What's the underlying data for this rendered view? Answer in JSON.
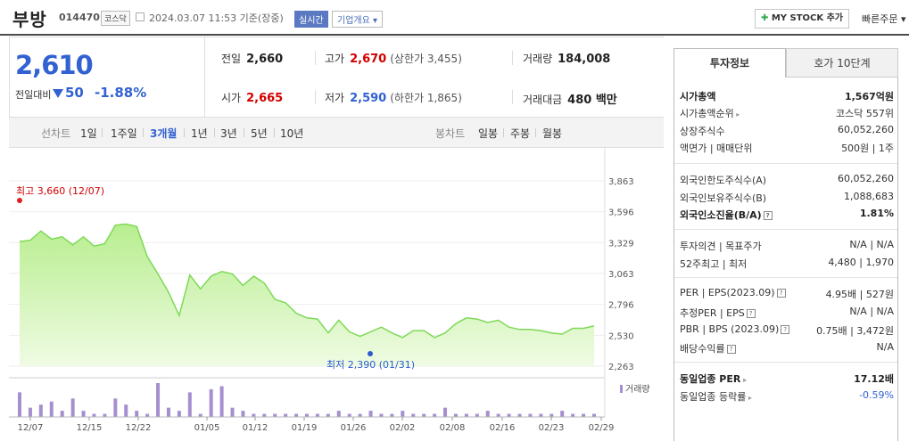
{
  "header": {
    "stock_name": "부방",
    "stock_code": "014470",
    "market": "코스닥",
    "timestamp": "2024.03.07 11:53 기준(장중)",
    "realtime_label": "실시간",
    "corp_info_label": "기업개요",
    "mystock_label": "MY STOCK 추가",
    "quick_order_label": "빠른주문"
  },
  "price": {
    "current": "2,610",
    "prev_label": "전일대비",
    "change": "50",
    "change_pct": "-1.88%"
  },
  "stats": {
    "prev_close_label": "전일",
    "prev_close": "2,660",
    "high_label": "고가",
    "high": "2,670",
    "upper_limit": "(상한가 3,455)",
    "volume_label": "거래량",
    "volume": "184,008",
    "open_label": "시가",
    "open": "2,665",
    "low_label": "저가",
    "low": "2,590",
    "lower_limit": "(하한가 1,865)",
    "amount_label": "거래대금",
    "amount": "480 백만"
  },
  "tabs": {
    "line_chart_label": "선차트",
    "periods": [
      "1일",
      "1주일",
      "3개월",
      "1년",
      "3년",
      "5년",
      "10년"
    ],
    "active_period": "3개월",
    "candle_label": "봉차트",
    "candles": [
      "일봉",
      "주봉",
      "월봉"
    ]
  },
  "chart_data": {
    "type": "area",
    "y_ticks": [
      "3,863",
      "3,596",
      "3,329",
      "3,063",
      "2,796",
      "2,530",
      "2,263"
    ],
    "ylim": [
      2263,
      3863
    ],
    "x_ticks": [
      "12/07",
      "12/15",
      "12/22",
      "01/05",
      "01/12",
      "01/19",
      "01/26",
      "02/02",
      "02/08",
      "02/16",
      "02/23",
      "02/29"
    ],
    "max_label": "최고 3,660 (12/07)",
    "min_label": "최저 2,390 (01/31)",
    "volume_legend": "거래량",
    "prices": [
      3340,
      3350,
      3430,
      3360,
      3380,
      3310,
      3380,
      3300,
      3320,
      3480,
      3490,
      3470,
      3210,
      3060,
      2900,
      2700,
      3050,
      2930,
      3040,
      3080,
      3060,
      2960,
      3040,
      2980,
      2840,
      2810,
      2720,
      2680,
      2670,
      2550,
      2660,
      2560,
      2520,
      2560,
      2600,
      2550,
      2510,
      2570,
      2570,
      2510,
      2550,
      2630,
      2680,
      2670,
      2640,
      2660,
      2600,
      2580,
      2580,
      2570,
      2550,
      2540,
      2590,
      2590,
      2610
    ],
    "volumes": [
      8,
      3,
      4,
      5,
      2,
      6,
      2,
      1,
      1,
      6,
      4,
      2,
      1,
      11,
      3,
      2,
      8,
      1,
      9,
      10,
      3,
      2,
      1,
      1,
      1,
      1,
      1,
      1,
      1,
      1,
      2,
      1,
      1,
      2,
      1,
      1,
      2,
      1,
      1,
      1,
      3,
      1,
      1,
      1,
      2,
      1,
      1,
      1,
      1,
      1,
      1,
      2,
      1,
      1,
      1
    ]
  },
  "right_panel": {
    "tab_invest": "투자정보",
    "tab_hoga": "호가 10단계",
    "rows": [
      {
        "k": "시가총액",
        "v": "1,567억원",
        "bold": true
      },
      {
        "k": "시가총액순위",
        "v": "코스닥 557위",
        "arrow": true
      },
      {
        "k": "상장주식수",
        "v": "60,052,260"
      },
      {
        "k": "액면가 | 매매단위",
        "v": "500원 | 1주"
      },
      {
        "k": "외국인한도주식수(A)",
        "v": "60,052,260"
      },
      {
        "k": "외국인보유주식수(B)",
        "v": "1,088,683"
      },
      {
        "k": "외국인소진율(B/A)",
        "v": "1.81%",
        "bold": true,
        "q": true
      },
      {
        "k": "투자의견 | 목표주가",
        "v": "N/A | N/A"
      },
      {
        "k": "52주최고 | 최저",
        "v": "4,480 | 1,970"
      },
      {
        "k": "PER | EPS(2023.09)",
        "v": "4.95배 | 527원",
        "q": true
      },
      {
        "k": "추정PER | EPS",
        "v": "N/A | N/A",
        "q": true
      },
      {
        "k": "PBR | BPS (2023.09)",
        "v": "0.75배 | 3,472원",
        "q": true
      },
      {
        "k": "배당수익률",
        "v": "N/A",
        "q": true
      },
      {
        "k": "동일업종 PER",
        "v": "17.12배",
        "bold": true,
        "arrow": true
      },
      {
        "k": "동일업종 등락률",
        "v": "-0.59%",
        "arrow": true,
        "neg": true
      }
    ]
  },
  "colors": {
    "up": "#d20000",
    "down": "#3262d2",
    "area": "#c9f3a8",
    "line": "#7ed957",
    "volume": "#a58fcf"
  }
}
